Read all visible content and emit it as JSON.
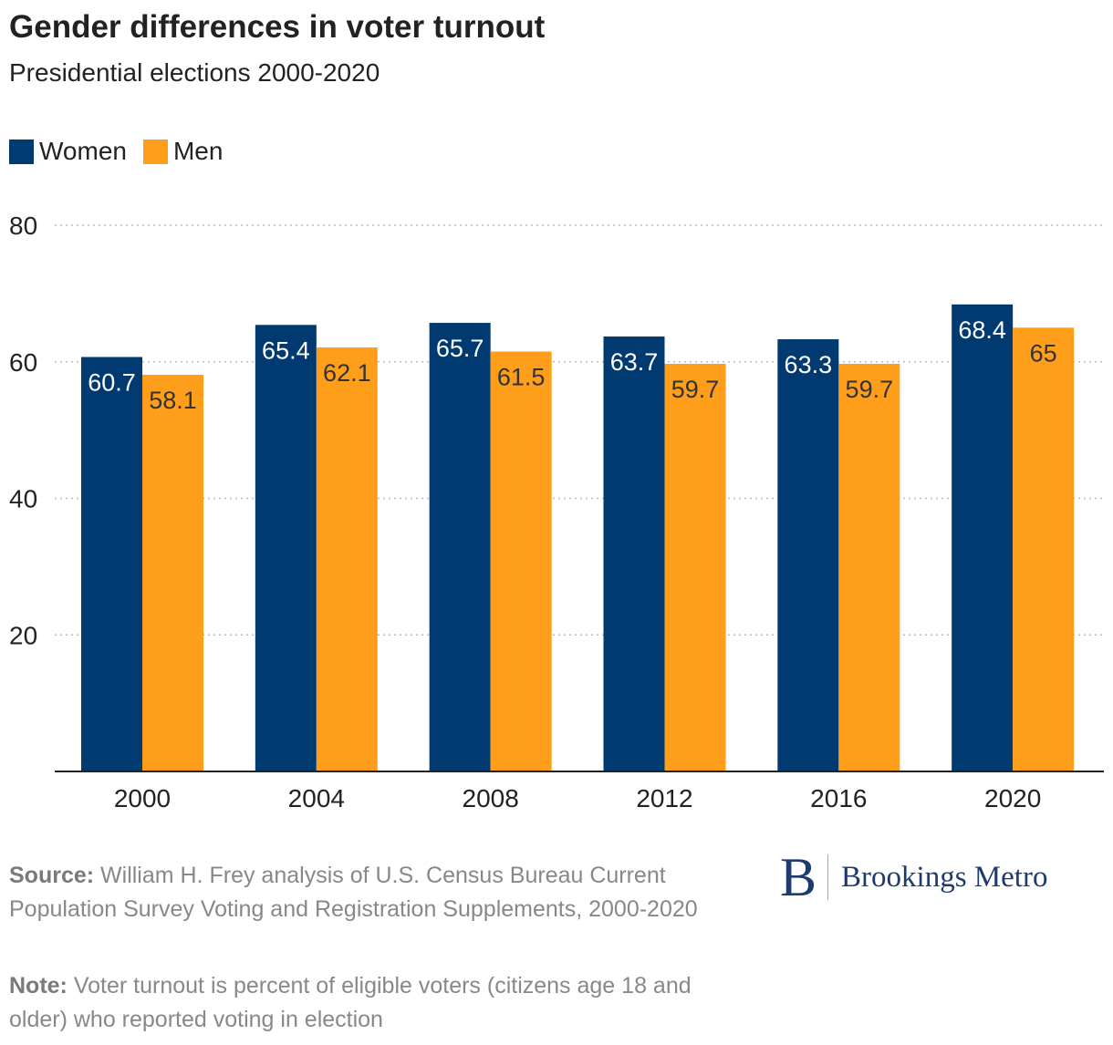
{
  "header": {
    "title": "Gender differences in voter turnout",
    "subtitle": "Presidential elections 2000-2020"
  },
  "legend": {
    "women_label": "Women",
    "men_label": "Men"
  },
  "colors": {
    "women": "#003a70",
    "men": "#ff9e1b",
    "women_label_text": "#ffffff",
    "men_label_text": "#333333",
    "grid": "#bbbbbb"
  },
  "chart_data": {
    "type": "bar",
    "title": "Gender differences in voter turnout",
    "subtitle": "Presidential elections 2000-2020",
    "categories": [
      "2000",
      "2004",
      "2008",
      "2012",
      "2016",
      "2020"
    ],
    "series": [
      {
        "name": "Women",
        "values": [
          60.7,
          65.4,
          65.7,
          63.7,
          63.3,
          68.4
        ]
      },
      {
        "name": "Men",
        "values": [
          58.1,
          62.1,
          61.5,
          59.7,
          59.7,
          65
        ]
      }
    ],
    "ylim": [
      0,
      80
    ],
    "yticks": [
      20,
      40,
      60,
      80
    ],
    "xlabel": "",
    "ylabel": "",
    "grid": true,
    "legend_position": "top-left"
  },
  "footer": {
    "source_label": "Source:",
    "source_text": "William H. Frey analysis of U.S. Census Bureau Current Population Survey Voting and Registration Supplements, 2000-2020",
    "note_label": "Note:",
    "note_text": "Voter turnout is percent of eligible voters (citizens age 18 and older) who reported voting in election"
  },
  "logo": {
    "mark": "B",
    "text": "Brookings Metro"
  }
}
